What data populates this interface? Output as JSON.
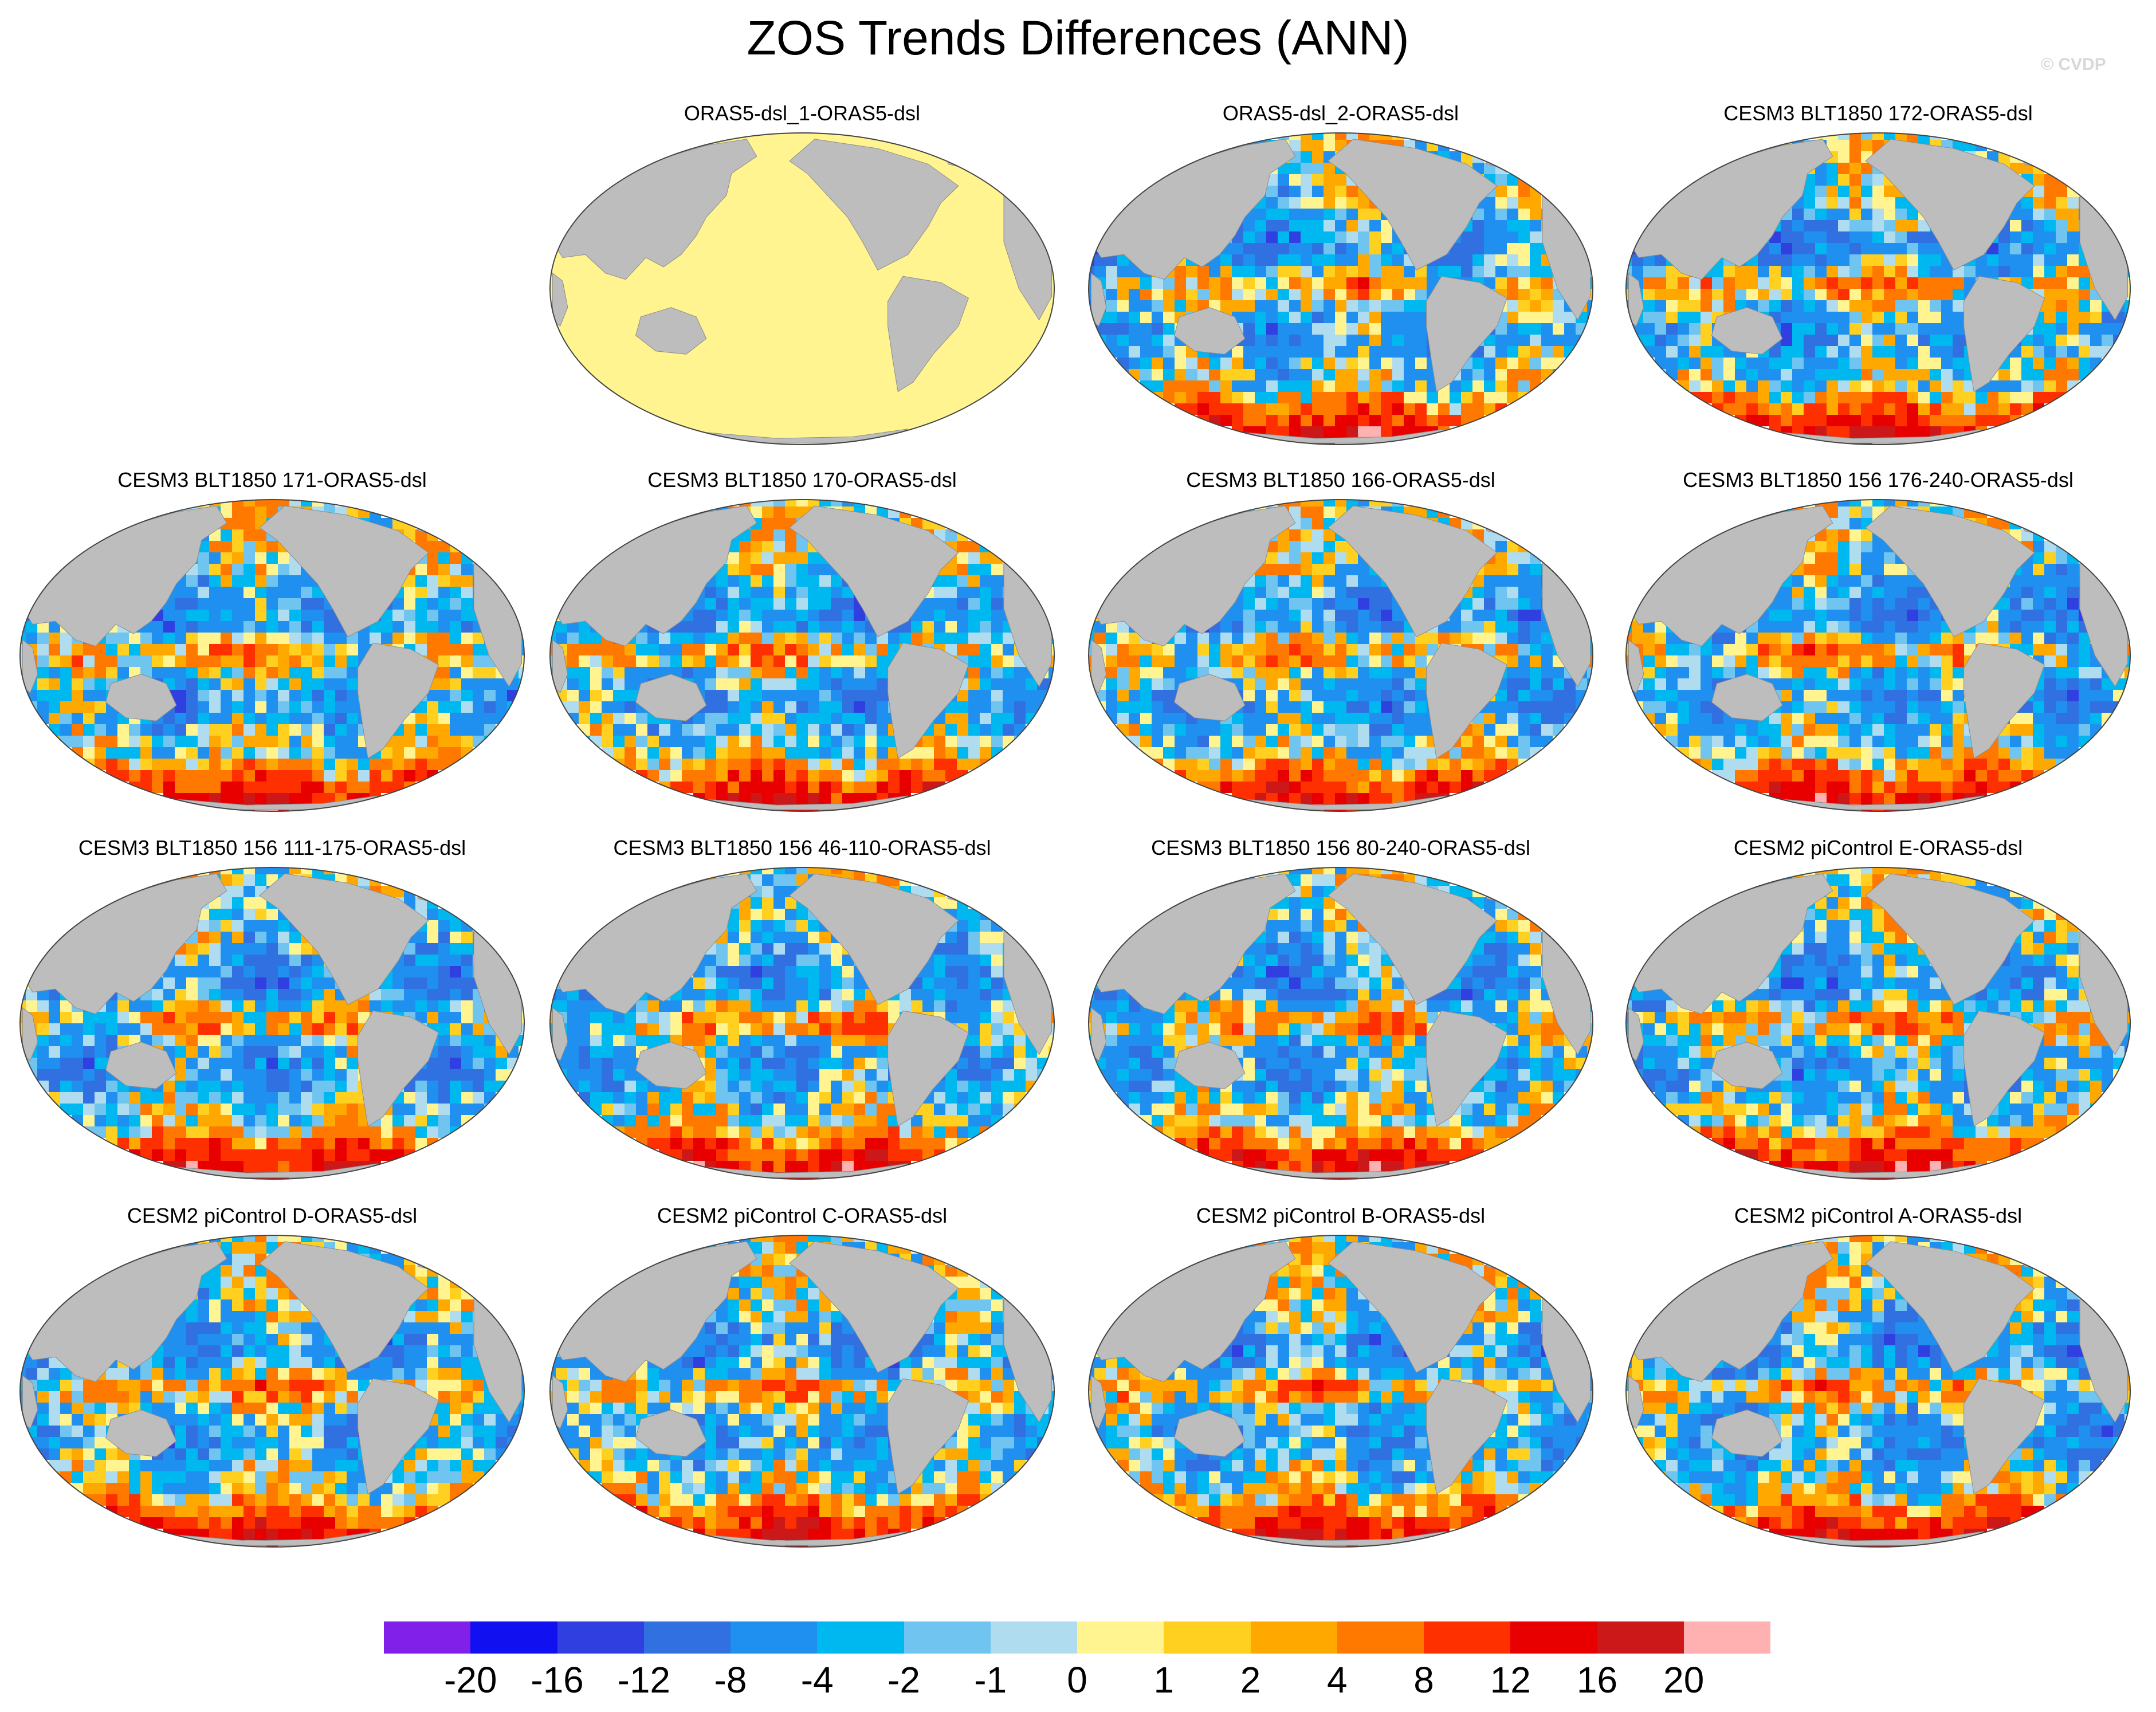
{
  "title": "ZOS Trends Differences (ANN)",
  "watermark": "© CVDP",
  "colors": {
    "land": "#bdbdbd",
    "background": "#ffffff"
  },
  "panels": [
    {
      "title": "ORAS5-dsl_1-ORAS5-dsl",
      "pattern": "uniform-zero"
    },
    {
      "title": "ORAS5-dsl_2-ORAS5-dsl",
      "pattern": "mixed"
    },
    {
      "title": "CESM3 BLT1850 172-ORAS5-dsl",
      "pattern": "mixed"
    },
    {
      "title": "CESM3 BLT1850 171-ORAS5-dsl",
      "pattern": "mixed"
    },
    {
      "title": "CESM3 BLT1850 170-ORAS5-dsl",
      "pattern": "mixed"
    },
    {
      "title": "CESM3 BLT1850 166-ORAS5-dsl",
      "pattern": "mixed"
    },
    {
      "title": "CESM3 BLT1850 156 176-240-ORAS5-dsl",
      "pattern": "mixed"
    },
    {
      "title": "CESM3 BLT1850 156 111-175-ORAS5-dsl",
      "pattern": "mixed"
    },
    {
      "title": "CESM3 BLT1850 156 46-110-ORAS5-dsl",
      "pattern": "mixed"
    },
    {
      "title": "CESM3 BLT1850 156 80-240-ORAS5-dsl",
      "pattern": "mixed"
    },
    {
      "title": "CESM2 piControl E-ORAS5-dsl",
      "pattern": "mixed"
    },
    {
      "title": "CESM2 piControl D-ORAS5-dsl",
      "pattern": "mixed"
    },
    {
      "title": "CESM2 piControl C-ORAS5-dsl",
      "pattern": "mixed"
    },
    {
      "title": "CESM2 piControl B-ORAS5-dsl",
      "pattern": "mixed"
    },
    {
      "title": "CESM2 piControl A-ORAS5-dsl",
      "pattern": "mixed"
    }
  ],
  "colorbar": {
    "colors": [
      "#8020e8",
      "#1010f0",
      "#3040e0",
      "#3070e0",
      "#2090f0",
      "#00b8f0",
      "#70c4f0",
      "#b0dcf0",
      "#fff490",
      "#ffd020",
      "#ffa800",
      "#ff7800",
      "#ff3000",
      "#e80000",
      "#cc1818",
      "#ffb0b0"
    ],
    "labels": [
      "-20",
      "-16",
      "-12",
      "-8",
      "-4",
      "-2",
      "-1",
      "0",
      "1",
      "2",
      "4",
      "8",
      "12",
      "16",
      "20"
    ]
  }
}
